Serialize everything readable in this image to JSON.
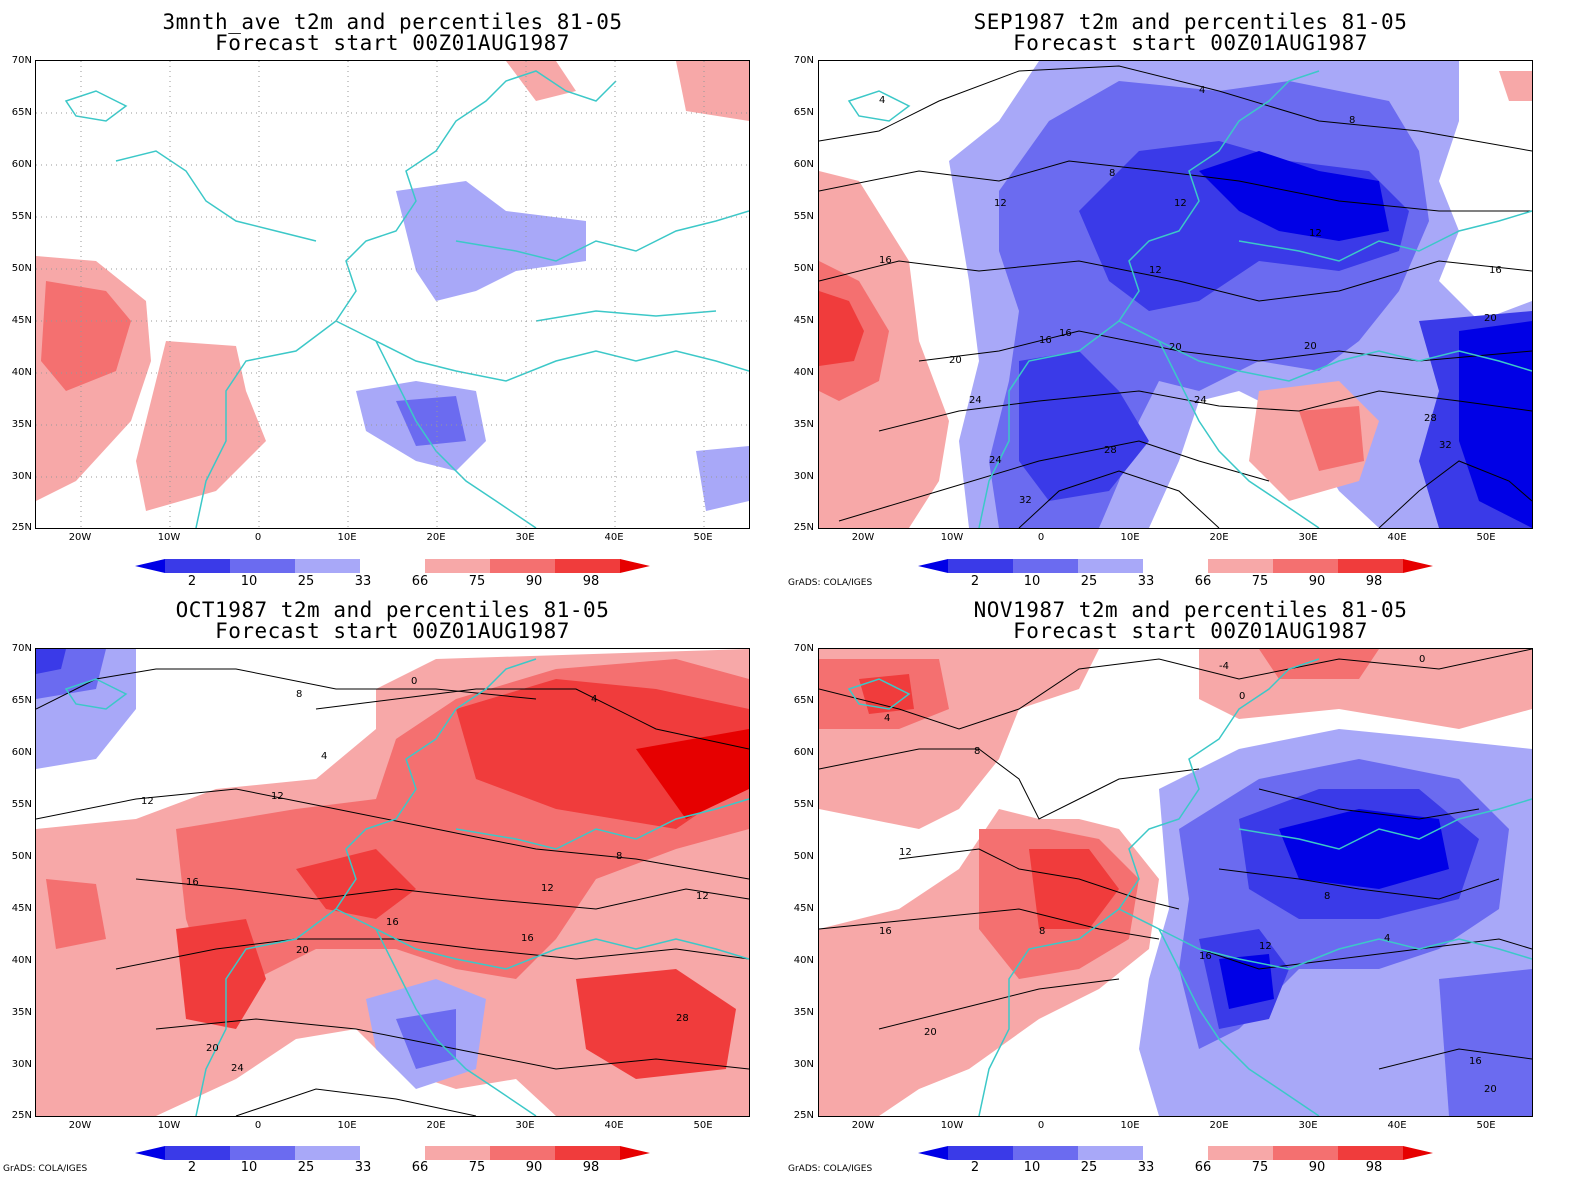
{
  "panels": [
    {
      "title1": "3mnth_ave t2m and percentiles 81-05",
      "title2": "Forecast start 00Z01AUG1987",
      "contours": []
    },
    {
      "title1": "SEP1987 t2m and percentiles 81-05",
      "title2": "Forecast start 00Z01AUG1987",
      "contours": [
        "4",
        "4",
        "8",
        "8",
        "12",
        "12",
        "12",
        "12",
        "16",
        "16",
        "16",
        "16",
        "20",
        "20",
        "20",
        "20",
        "24",
        "24",
        "24",
        "28",
        "28",
        "32",
        "32"
      ]
    },
    {
      "title1": "OCT1987 t2m and percentiles 81-05",
      "title2": "Forecast start 00Z01AUG1987",
      "contours": [
        "0",
        "4",
        "8",
        "12",
        "12",
        "16",
        "16",
        "16",
        "20",
        "20",
        "24",
        "28",
        "8",
        "4",
        "12",
        "12"
      ]
    },
    {
      "title1": "NOV1987 t2m and percentiles 81-05",
      "title2": "Forecast start 00Z01AUG1987",
      "contours": [
        "-4",
        "0",
        "0",
        "4",
        "8",
        "8",
        "12",
        "16",
        "16",
        "20",
        "12",
        "8",
        "4",
        "16",
        "20"
      ]
    }
  ],
  "lat_labels": [
    "70N",
    "65N",
    "60N",
    "55N",
    "50N",
    "45N",
    "40N",
    "35N",
    "30N",
    "25N"
  ],
  "lon_labels": [
    "20W",
    "10W",
    "0",
    "10E",
    "20E",
    "30E",
    "40E",
    "50E"
  ],
  "colorbar": {
    "labels": [
      "2",
      "10",
      "25",
      "33",
      "66",
      "75",
      "90",
      "98"
    ],
    "colors": [
      "#0000e6",
      "#3a3ae8",
      "#6b6bf0",
      "#a8a8f8",
      "#ffffff",
      "#f7a8a8",
      "#f47070",
      "#f03c3c",
      "#e60000"
    ]
  },
  "credit": "GrADS: COLA/IGES"
}
